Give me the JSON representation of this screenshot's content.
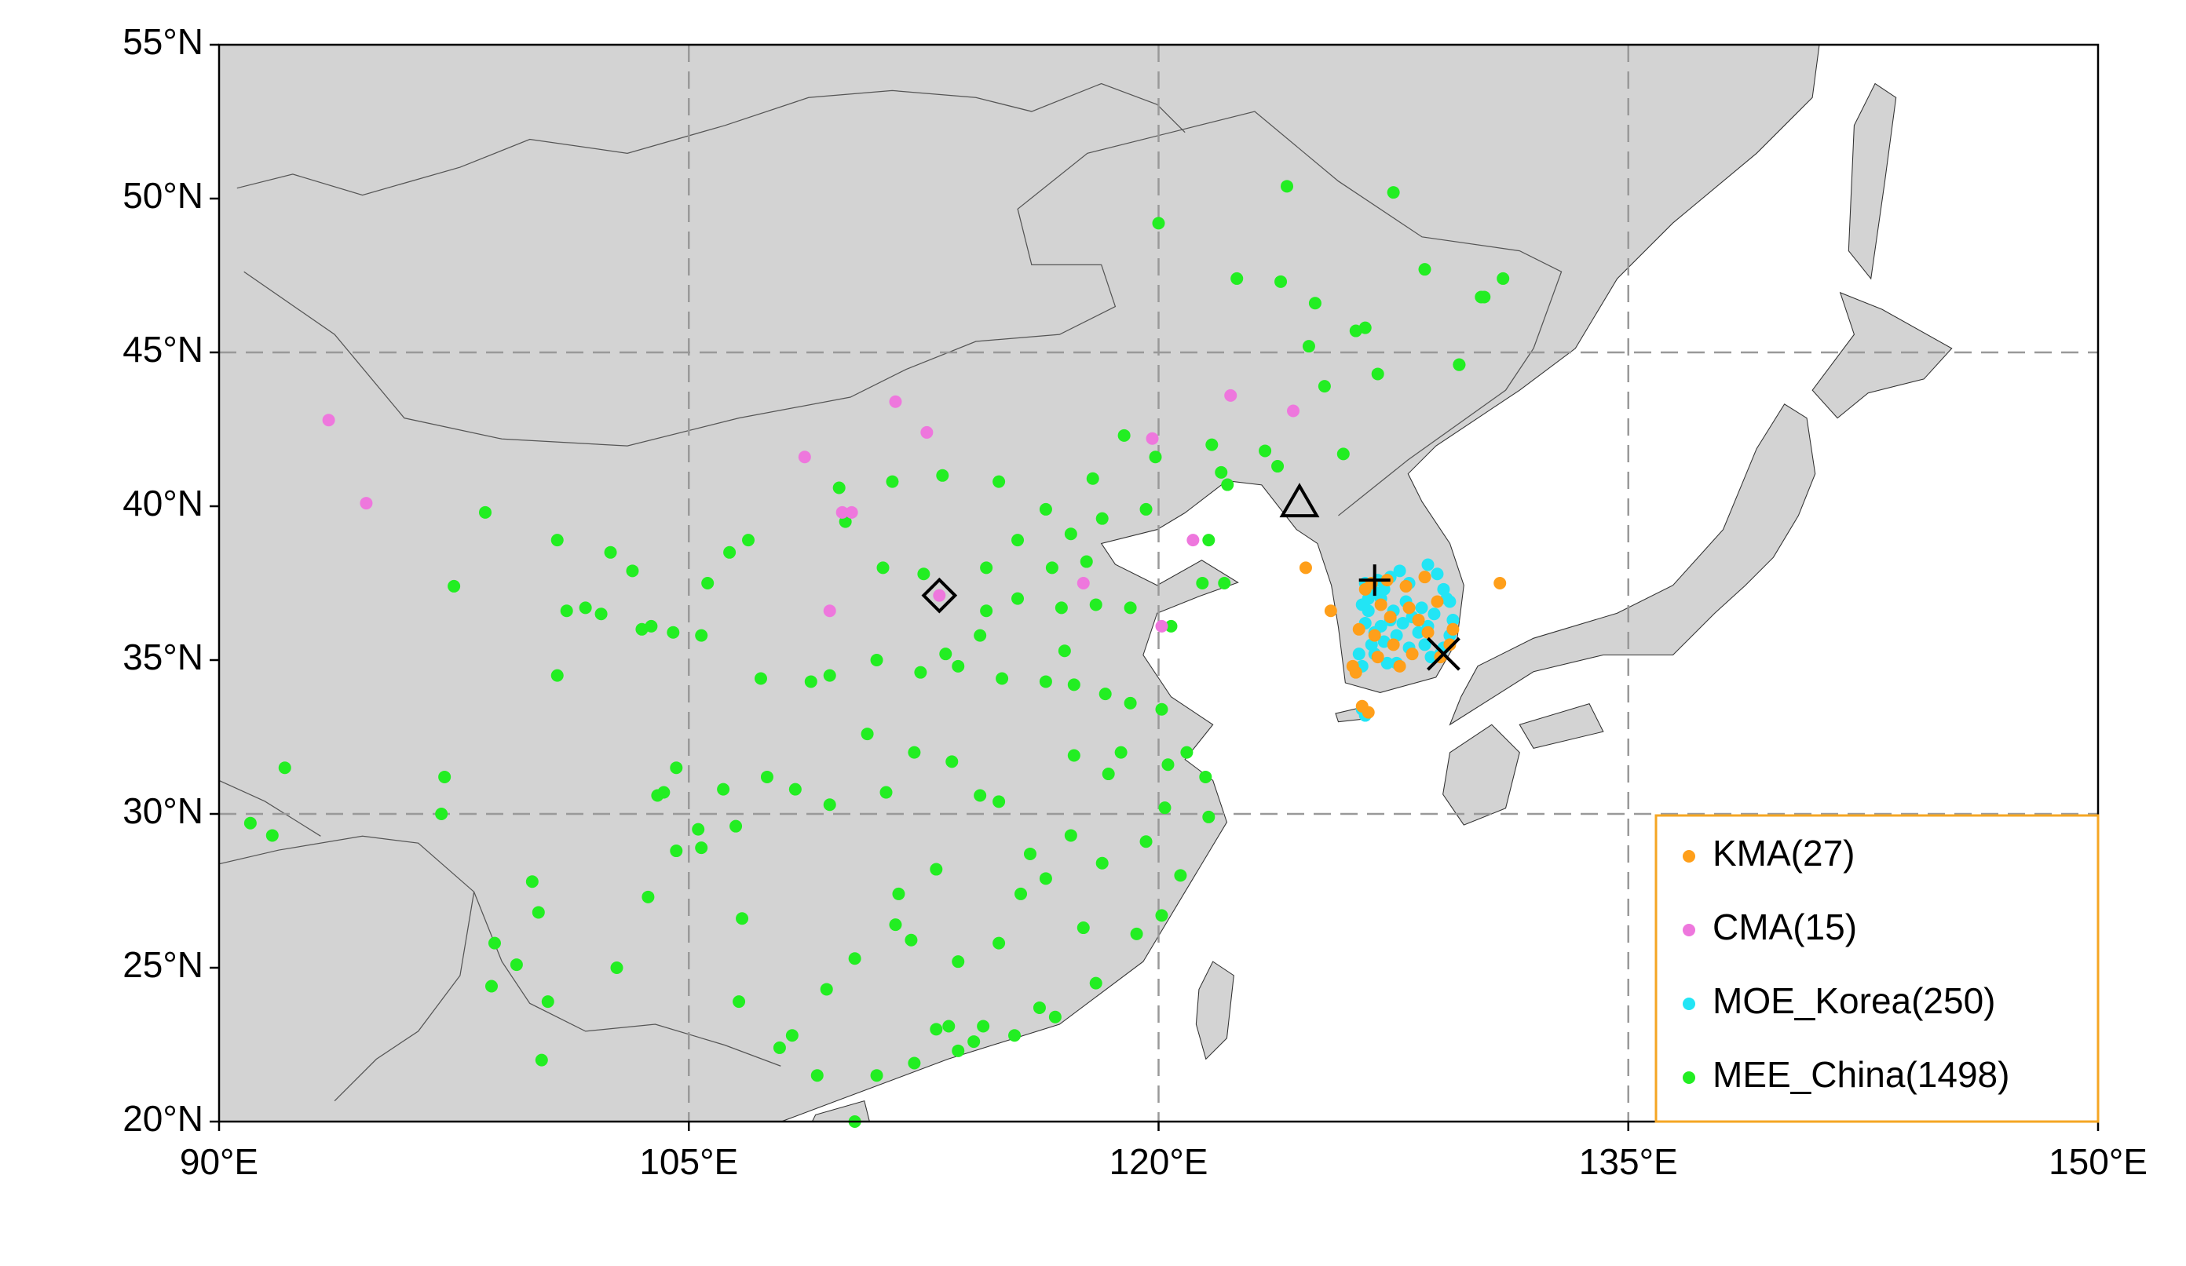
{
  "chart_data": {
    "type": "scatter",
    "xlim": [
      90,
      150
    ],
    "ylim": [
      20,
      55
    ],
    "xticks": [
      {
        "value": 90,
        "label": "90°E"
      },
      {
        "value": 105,
        "label": "105°E"
      },
      {
        "value": 120,
        "label": "120°E"
      },
      {
        "value": 135,
        "label": "135°E"
      },
      {
        "value": 150,
        "label": "150°E"
      }
    ],
    "yticks": [
      {
        "value": 20,
        "label": "20°N"
      },
      {
        "value": 25,
        "label": "25°N"
      },
      {
        "value": 30,
        "label": "30°N"
      },
      {
        "value": 35,
        "label": "35°N"
      },
      {
        "value": 40,
        "label": "40°N"
      },
      {
        "value": 45,
        "label": "45°N"
      },
      {
        "value": 50,
        "label": "50°N"
      },
      {
        "value": 55,
        "label": "55°N"
      }
    ],
    "grid_step": 15,
    "legend": "lower right",
    "legend_edgecolor": "#f5a623",
    "series": [
      {
        "name": "KMA(27)",
        "color": "#ff9f1a",
        "x": [
          124.7,
          127.3,
          126.4,
          127,
          128.6,
          129.3,
          126.5,
          126.3,
          128.5,
          127.9,
          128.3,
          127.4,
          126.9,
          129,
          127.7,
          126.8,
          130.9,
          125.5,
          127.1,
          128.9,
          126.2,
          128.1,
          126.7,
          129.4,
          127.5,
          128,
          126.6
        ],
        "values": [
          38,
          37.6,
          36,
          35.1,
          35.9,
          35.5,
          33.5,
          34.6,
          37.7,
          37.4,
          36.3,
          36.4,
          35.8,
          35.1,
          34.8,
          37.5,
          37.5,
          36.6,
          36.8,
          36.9,
          34.8,
          35.2,
          33.3,
          36,
          35.5,
          36.7,
          37.3
        ]
      },
      {
        "name": "CMA(15)",
        "color": "#ee77dd",
        "x": [
          93.5,
          94.7,
          108.7,
          111.6,
          112.6,
          109.9,
          109.5,
          113,
          117.6,
          119.8,
          122.3,
          124.3,
          120.1,
          121.1,
          110.2
        ],
        "values": [
          42.8,
          40.1,
          41.6,
          43.4,
          42.4,
          39.8,
          36.6,
          37.1,
          37.5,
          42.2,
          43.6,
          43.1,
          36.1,
          38.9,
          39.8
        ]
      },
      {
        "name": "MOE_Korea(250)",
        "color": "#22e5f5",
        "x": [
          126.6,
          126.8,
          127,
          127.2,
          126.9,
          127.1,
          127.4,
          127.7,
          128,
          128.6,
          128.9,
          129.1,
          129.3,
          129.4,
          129.3,
          129.1,
          129,
          128.7,
          128.5,
          128.3,
          128.6,
          128.1,
          127.8,
          127.4,
          127.1,
          126.9,
          126.8,
          126.9,
          127.3,
          127.6,
          126.5,
          126.4,
          126.6,
          126.5,
          126.7,
          127.5,
          127.9,
          128.4,
          128.8,
          126.5,
          126.6,
          129.2,
          127.6,
          128,
          127.2,
          126.7
        ],
        "values": [
          37.5,
          37.4,
          37.6,
          37.3,
          37.2,
          37,
          37.7,
          37.9,
          37.5,
          38.1,
          37.8,
          37.3,
          36.9,
          36.3,
          35.8,
          35.4,
          35.2,
          35.1,
          35.5,
          35.9,
          36.1,
          36.4,
          36.2,
          36.3,
          36.1,
          35.9,
          35.5,
          35.2,
          34.9,
          34.9,
          34.8,
          35.2,
          36.2,
          36.8,
          36.6,
          36.6,
          36.9,
          36.7,
          36.5,
          33.4,
          33.2,
          37,
          35.8,
          35.4,
          35.6,
          37
        ]
      },
      {
        "name": "MEE_China(1498)",
        "color": "#22ee22",
        "x": [
          91,
          91.7,
          92.1,
          97.1,
          97.2,
          97.5,
          98.5,
          98.8,
          98.7,
          99.5,
          100,
          100.2,
          100.5,
          100.3,
          101.1,
          100.8,
          100.8,
          101.7,
          102.2,
          102.5,
          103.2,
          103.5,
          104.5,
          105.4,
          102.7,
          103.7,
          104.2,
          104.6,
          104,
          105.3,
          106.5,
          106.7,
          107.3,
          106.3,
          106.9,
          108.9,
          109.5,
          111.5,
          109.8,
          112.5,
          113.6,
          114.5,
          115.5,
          116.4,
          117.2,
          116.9,
          117,
          118.8,
          120.3,
          121.5,
          120.2,
          121.6,
          119.3,
          118,
          113.3,
          114.1,
          113.6,
          112.9,
          110.3,
          108.3,
          110.3,
          111.7,
          112.9,
          114.3,
          115.9,
          117.3,
          112.4,
          111,
          116.7,
          122.1,
          121.4,
          120.4,
          119.1,
          118,
          121.6,
          123.4,
          122.2,
          125.3,
          126.6,
          129.6,
          130.3,
          131,
          127.5,
          124.1,
          122.5,
          120,
          123.9,
          119.9,
          118.9,
          117.9,
          114.9,
          113.1,
          111.2,
          110,
          105.6,
          103.8,
          104.6,
          105.4,
          106.1,
          107.5,
          108.4,
          109.5,
          110.7,
          111.3,
          112.2,
          113.4,
          114.9,
          115.6,
          116.4,
          117.2,
          118.2,
          119.6,
          120.7,
          120.1,
          117.6,
          114.9,
          113.6,
          112.1,
          111.6,
          109.4,
          106.6,
          107.9,
          114.4,
          115.4,
          116.2,
          112.2,
          111,
          109.1,
          117.3,
          118.3,
          119.1,
          120.1,
          120.9,
          118.4,
          117.7,
          116.6,
          115.5,
          114.5,
          113.2,
          114.3,
          115,
          116.4,
          126.3,
          124.8,
          125,
          127,
          128.5,
          129.6,
          130.4,
          123.8,
          125.9,
          121.7,
          119.6,
          118.2,
          122
        ],
        "values": [
          29.7,
          29.3,
          31.5,
          30,
          31.2,
          37.4,
          39.8,
          25.8,
          24.4,
          25.1,
          27.8,
          26.8,
          23.9,
          22,
          36.6,
          38.9,
          34.5,
          36.7,
          36.5,
          38.5,
          37.9,
          36,
          35.9,
          35.8,
          25,
          27.3,
          30.7,
          31.5,
          30.6,
          29.5,
          29.6,
          26.6,
          34.4,
          38.5,
          38.9,
          34.3,
          34.5,
          40.8,
          40.6,
          37.8,
          34.8,
          38,
          38.9,
          39.9,
          39.1,
          36.7,
          35.3,
          32,
          31.6,
          31.2,
          30.2,
          29.9,
          26.1,
          24.5,
          23.1,
          22.6,
          22.3,
          23,
          25.3,
          22.8,
          20,
          27.4,
          28.2,
          30.6,
          28.7,
          31.9,
          34.6,
          35,
          23.4,
          37.5,
          37.5,
          36.1,
          36.7,
          36.8,
          38.9,
          41.8,
          40.7,
          43.9,
          45.8,
          44.6,
          46.8,
          47.4,
          50.2,
          50.4,
          47.4,
          49.2,
          47.3,
          41.6,
          42.3,
          40.9,
          40.8,
          41,
          38,
          39.5,
          37.5,
          36.1,
          28.8,
          28.9,
          30.8,
          31.2,
          30.8,
          30.3,
          32.6,
          30.7,
          32,
          31.7,
          30.4,
          27.4,
          27.9,
          29.3,
          28.4,
          29.1,
          28,
          26.7,
          26.3,
          25.8,
          25.2,
          25.9,
          26.4,
          24.3,
          23.9,
          22.4,
          23.1,
          22.8,
          23.7,
          21.9,
          21.5,
          21.5,
          34.2,
          33.9,
          33.6,
          33.4,
          32,
          31.3,
          38.2,
          38,
          37,
          36.6,
          35.2,
          35.8,
          34.4,
          34.3,
          45.7,
          45.2,
          46.6,
          44.3,
          47.7,
          44.6,
          46.8,
          41.3,
          41.7,
          42,
          39.9,
          39.6,
          41.1
        ]
      }
    ],
    "markers": [
      {
        "symbol": "diamond",
        "x": 113,
        "y": 37.1
      },
      {
        "symbol": "triangle",
        "x": 124.5,
        "y": 40.1
      },
      {
        "symbol": "plus",
        "x": 126.9,
        "y": 37.6
      },
      {
        "symbol": "cross",
        "x": 129.1,
        "y": 35.2
      }
    ]
  }
}
